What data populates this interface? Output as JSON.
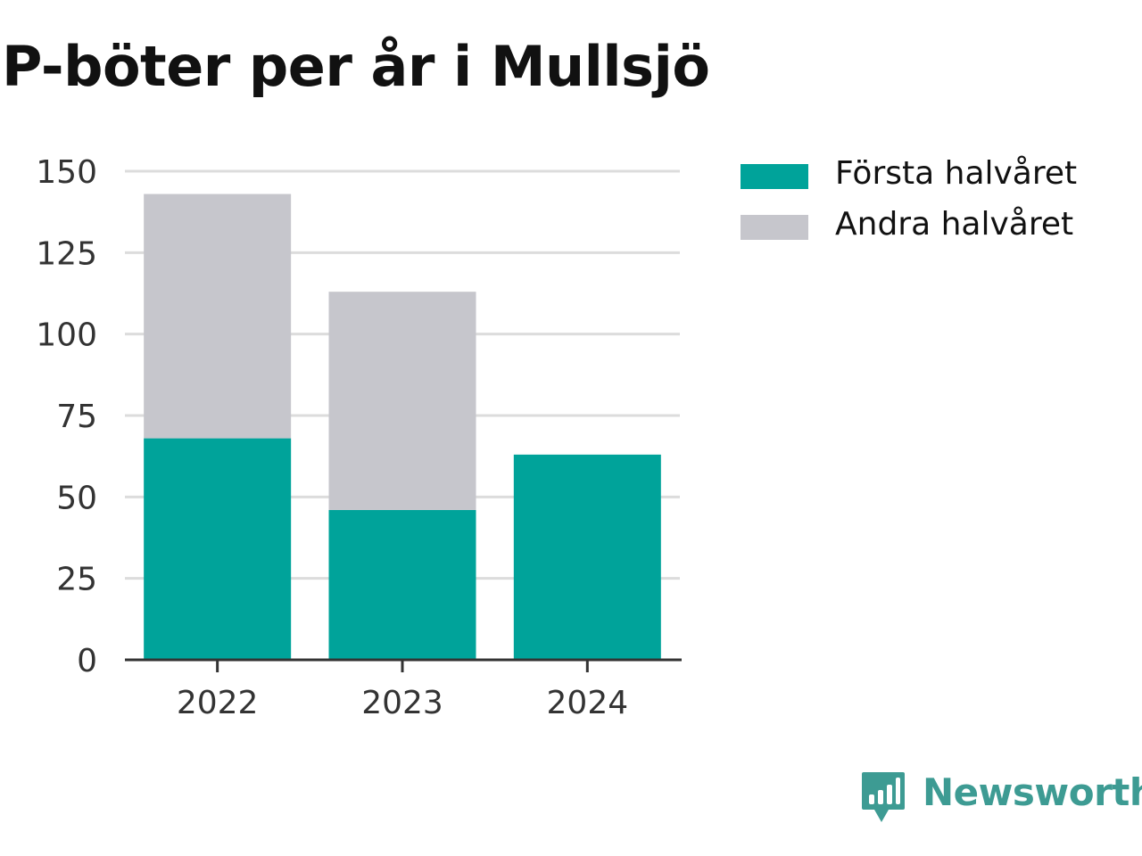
{
  "chart_data": {
    "type": "bar",
    "stacked": true,
    "title": "P-böter per år i Mullsjö",
    "xlabel": "",
    "ylabel": "",
    "categories": [
      "2022",
      "2023",
      "2024"
    ],
    "series": [
      {
        "name": "Första halvåret",
        "values": [
          68,
          46,
          63
        ],
        "color": "#00a39a"
      },
      {
        "name": "Andra halvåret",
        "values": [
          75,
          67,
          0
        ],
        "color": "#c6c6cc"
      }
    ],
    "ylim": [
      0,
      150
    ],
    "yticks": [
      "0",
      "25",
      "50",
      "75",
      "100",
      "125",
      "150"
    ],
    "grid": true,
    "legend": "top-right"
  },
  "brand": {
    "name": "Newsworthy",
    "logo_icon": "bar-chart-speech-bubble-icon",
    "color": "#3d9b93"
  }
}
